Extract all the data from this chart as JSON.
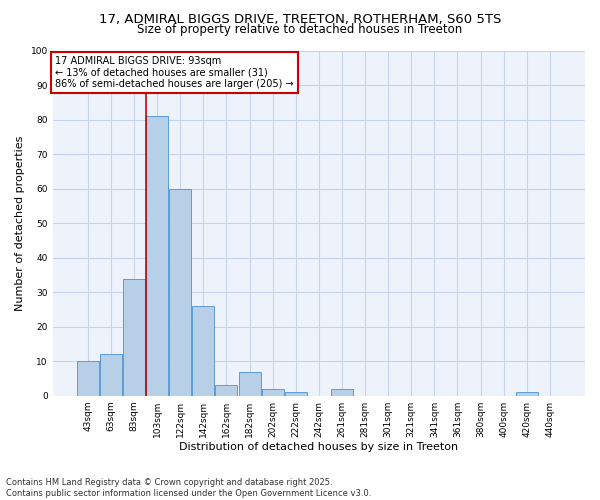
{
  "title_line1": "17, ADMIRAL BIGGS DRIVE, TREETON, ROTHERHAM, S60 5TS",
  "title_line2": "Size of property relative to detached houses in Treeton",
  "xlabel": "Distribution of detached houses by size in Treeton",
  "ylabel": "Number of detached properties",
  "bins": [
    "43sqm",
    "63sqm",
    "83sqm",
    "103sqm",
    "122sqm",
    "142sqm",
    "162sqm",
    "182sqm",
    "202sqm",
    "222sqm",
    "242sqm",
    "261sqm",
    "281sqm",
    "301sqm",
    "321sqm",
    "341sqm",
    "361sqm",
    "380sqm",
    "400sqm",
    "420sqm",
    "440sqm"
  ],
  "bar_values": [
    10,
    12,
    34,
    81,
    60,
    26,
    3,
    7,
    2,
    1,
    0,
    2,
    0,
    0,
    0,
    0,
    0,
    0,
    0,
    1,
    0
  ],
  "bar_color": "#b8cfe8",
  "bar_edge_color": "#5b9bd5",
  "vline_color": "#cc0000",
  "vline_x_index": 3,
  "annotation_text": "17 ADMIRAL BIGGS DRIVE: 93sqm\n← 13% of detached houses are smaller (31)\n86% of semi-detached houses are larger (205) →",
  "annotation_box_color": "#cc0000",
  "ylim": [
    0,
    100
  ],
  "yticks": [
    0,
    10,
    20,
    30,
    40,
    50,
    60,
    70,
    80,
    90,
    100
  ],
  "footer_line1": "Contains HM Land Registry data © Crown copyright and database right 2025.",
  "footer_line2": "Contains public sector information licensed under the Open Government Licence v3.0.",
  "bg_color": "#eef2fb",
  "grid_color": "#c8d4ea",
  "title_fontsize": 9.5,
  "subtitle_fontsize": 8.5,
  "axis_label_fontsize": 8,
  "tick_fontsize": 6.5,
  "annotation_fontsize": 7,
  "footer_fontsize": 6
}
